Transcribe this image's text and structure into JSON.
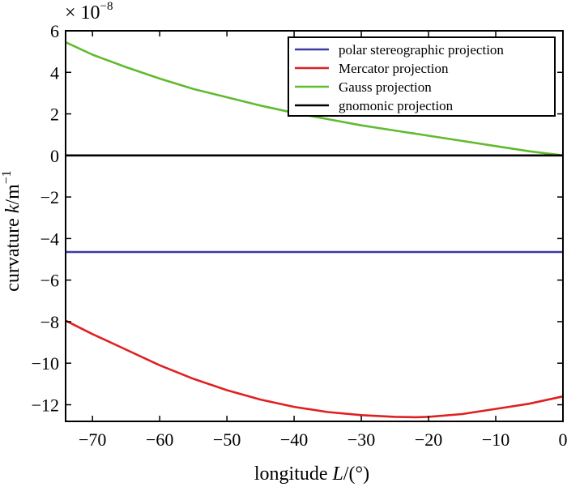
{
  "chart_data": {
    "type": "line",
    "title": "",
    "xlabel": {
      "prefix": "longitude ",
      "var": "L",
      "suffix": "/(°)"
    },
    "ylabel": {
      "prefix": "curvature ",
      "var": "k",
      "suffix": "/m",
      "sup": "−1"
    },
    "y_multiplier": {
      "base": "× 10",
      "exponent": "−8"
    },
    "xlim": [
      -74,
      0
    ],
    "ylim": [
      -12.8,
      6
    ],
    "xticks": [
      -70,
      -60,
      -50,
      -40,
      -30,
      -20,
      -10,
      0
    ],
    "xtick_labels": [
      "−70",
      "−60",
      "−50",
      "−40",
      "−30",
      "−20",
      "−10",
      "0"
    ],
    "yticks": [
      6,
      4,
      2,
      0,
      -2,
      -4,
      -6,
      -8,
      -10,
      -12
    ],
    "ytick_labels": [
      "6",
      "4",
      "2",
      "0",
      "−2",
      "−4",
      "−6",
      "−8",
      "−10",
      "−12"
    ],
    "legend_position": "top-right",
    "series": [
      {
        "name": "polar stereographic projection",
        "color": "#3a3aa0",
        "x": [
          -74,
          0
        ],
        "y": [
          -4.65,
          -4.65
        ]
      },
      {
        "name": "Mercator projection",
        "color": "#e02020",
        "x": [
          -74,
          -70,
          -65,
          -60,
          -55,
          -50,
          -45,
          -40,
          -35,
          -30,
          -25,
          -22,
          -20,
          -15,
          -10,
          -5,
          0
        ],
        "y": [
          -7.95,
          -8.6,
          -9.35,
          -10.1,
          -10.75,
          -11.3,
          -11.75,
          -12.1,
          -12.35,
          -12.5,
          -12.58,
          -12.6,
          -12.58,
          -12.45,
          -12.2,
          -11.95,
          -11.6
        ]
      },
      {
        "name": "Gauss projection",
        "color": "#60bb30",
        "x": [
          -74,
          -70,
          -65,
          -60,
          -55,
          -50,
          -45,
          -40,
          -35,
          -30,
          -25,
          -20,
          -15,
          -10,
          -5,
          0
        ],
        "y": [
          5.45,
          4.85,
          4.25,
          3.7,
          3.2,
          2.8,
          2.4,
          2.05,
          1.75,
          1.45,
          1.2,
          0.95,
          0.7,
          0.45,
          0.2,
          0
        ]
      },
      {
        "name": "gnomonic projection",
        "color": "#000000",
        "x": [
          -74,
          0
        ],
        "y": [
          0,
          0
        ]
      }
    ]
  }
}
